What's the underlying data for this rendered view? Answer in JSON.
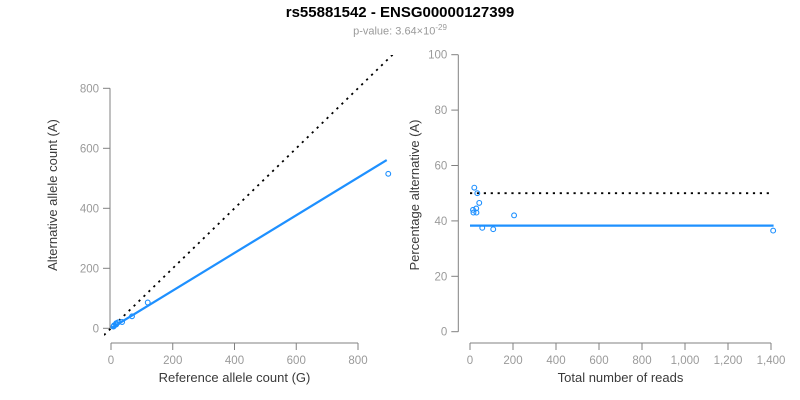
{
  "header": {
    "title": "rs55881542 - ENSG00000127399",
    "subtitle_prefix": "p-value: 3.64×10",
    "subtitle_exponent": "-29"
  },
  "colors": {
    "accent_blue": "#1E90FF",
    "line_black": "#000000",
    "axis_gray": "#808080",
    "tick_label_gray": "#9a9a9a",
    "axis_title_dark": "#3a3a3a"
  },
  "chart_data": [
    {
      "type": "scatter",
      "panel": "allele-counts",
      "xlabel": "Reference allele count (G)",
      "ylabel": "Alternative allele count (A)",
      "xlim": [
        0,
        900
      ],
      "ylim": [
        0,
        900
      ],
      "xticks": [
        0,
        200,
        400,
        600,
        800
      ],
      "xtick_labels": [
        "0",
        "200",
        "400",
        "600",
        "800"
      ],
      "yticks": [
        0,
        200,
        400,
        600,
        800
      ],
      "ytick_labels": [
        "0",
        "200",
        "400",
        "600",
        "800"
      ],
      "grid": false,
      "legend": false,
      "points": [
        [
          10,
          10
        ],
        [
          17,
          17
        ],
        [
          23,
          20
        ],
        [
          8,
          6
        ],
        [
          16,
          13
        ],
        [
          9,
          7
        ],
        [
          17,
          13
        ],
        [
          36,
          21
        ],
        [
          68,
          40
        ],
        [
          119,
          86
        ],
        [
          898,
          515
        ]
      ],
      "lines": [
        {
          "name": "identity-line",
          "style": "dotted",
          "color": "#000000",
          "slope": 1,
          "intercept": 0,
          "span": "region"
        },
        {
          "name": "fit-line",
          "style": "solid",
          "color": "#1E90FF",
          "slope": 0.628,
          "intercept": 0,
          "x_range": [
            0,
            893
          ]
        }
      ]
    },
    {
      "type": "scatter",
      "panel": "percentage-vs-reads",
      "xlabel": "Total number of reads",
      "ylabel": "Percentage alternative (A)",
      "xlim": [
        0,
        1410
      ],
      "ylim": [
        0,
        100
      ],
      "xticks": [
        0,
        200,
        400,
        600,
        800,
        1000,
        1200,
        1400
      ],
      "xtick_labels": [
        "0",
        "200",
        "400",
        "600",
        "800",
        "1,000",
        "1,200",
        "1,400"
      ],
      "yticks": [
        0,
        20,
        40,
        60,
        80,
        100
      ],
      "ytick_labels": [
        "0",
        "20",
        "40",
        "60",
        "80",
        "100"
      ],
      "grid": false,
      "legend": false,
      "points": [
        [
          20,
          52
        ],
        [
          34,
          50
        ],
        [
          43,
          46.5
        ],
        [
          14,
          44
        ],
        [
          29,
          44.5
        ],
        [
          16,
          43
        ],
        [
          30,
          43
        ],
        [
          205,
          42
        ],
        [
          57,
          37.5
        ],
        [
          108,
          37
        ],
        [
          1410,
          36.5
        ]
      ],
      "lines": [
        {
          "name": "expected-line",
          "style": "dotted",
          "color": "#000000",
          "hline": 50,
          "x_range": [
            0,
            1400
          ]
        },
        {
          "name": "fit-line",
          "style": "solid",
          "color": "#1E90FF",
          "hline": 38.3,
          "x_range": [
            0,
            1412
          ]
        }
      ]
    }
  ]
}
